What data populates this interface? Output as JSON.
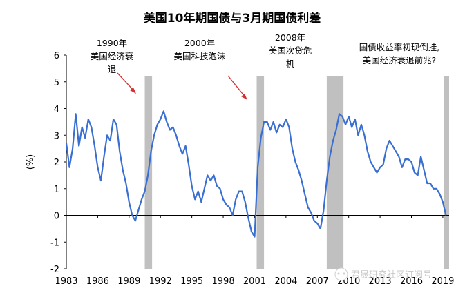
{
  "chart_data": {
    "type": "line",
    "title": "美国10年期国债与3月期国债利差",
    "ylabel": "(%)",
    "xlabel": "",
    "xlim": [
      1983,
      2019.6
    ],
    "ylim": [
      -2,
      6
    ],
    "y_ticks": [
      -2,
      -1,
      0,
      1,
      2,
      3,
      4,
      5,
      6
    ],
    "x_ticks": [
      1983,
      1986,
      1989,
      1992,
      1995,
      1998,
      2001,
      2004,
      2007,
      2010,
      2013,
      2016,
      2019
    ],
    "grid": false,
    "legend": "none",
    "line_color": "#3a6fd2",
    "shade_color": "#c0c0c0",
    "recessions": [
      {
        "start": 1990.5,
        "end": 1991.2
      },
      {
        "start": 2001.2,
        "end": 2001.9
      },
      {
        "start": 2007.9,
        "end": 2009.5
      },
      {
        "start": 2019.1,
        "end": 2019.6
      }
    ],
    "annotations": [
      {
        "lines": [
          "1990年",
          "美国经济衰",
          "退"
        ],
        "arrow": true
      },
      {
        "lines": [
          "2000年",
          "美国科技泡沫"
        ],
        "arrow": true
      },
      {
        "lines": [
          "2008年",
          "美国次贷危",
          "机"
        ],
        "arrow": false
      },
      {
        "lines": [
          "国债收益率初现倒挂,",
          "美国经济衰退前兆?"
        ],
        "arrow": false
      }
    ],
    "watermark": "君晟研究社区订阅号",
    "series": [
      {
        "x": [
          1983.0,
          1983.3,
          1983.6,
          1983.9,
          1984.2,
          1984.5,
          1984.8,
          1985.1,
          1985.4,
          1985.7,
          1986.0,
          1986.3,
          1986.6,
          1986.9,
          1987.2,
          1987.5,
          1987.8,
          1988.1,
          1988.4,
          1988.7,
          1989.0,
          1989.3,
          1989.6,
          1989.9,
          1990.2,
          1990.5,
          1990.8,
          1991.1,
          1991.4,
          1991.7,
          1992.0,
          1992.3,
          1992.6,
          1992.9,
          1993.2,
          1993.5,
          1993.8,
          1994.1,
          1994.4,
          1994.7,
          1995.0,
          1995.3,
          1995.6,
          1995.9,
          1996.2,
          1996.5,
          1996.8,
          1997.1,
          1997.4,
          1997.7,
          1998.0,
          1998.3,
          1998.6,
          1998.9,
          1999.2,
          1999.5,
          1999.8,
          2000.1,
          2000.4,
          2000.7,
          2001.0,
          2001.3,
          2001.6,
          2001.9,
          2002.2,
          2002.5,
          2002.8,
          2003.1,
          2003.4,
          2003.7,
          2004.0,
          2004.3,
          2004.6,
          2004.9,
          2005.2,
          2005.5,
          2005.8,
          2006.1,
          2006.4,
          2006.7,
          2007.0,
          2007.3,
          2007.6,
          2007.9,
          2008.2,
          2008.5,
          2008.8,
          2009.1,
          2009.4,
          2009.7,
          2010.0,
          2010.3,
          2010.6,
          2010.9,
          2011.2,
          2011.5,
          2011.8,
          2012.1,
          2012.4,
          2012.7,
          2013.0,
          2013.3,
          2013.6,
          2013.9,
          2014.2,
          2014.5,
          2014.8,
          2015.1,
          2015.4,
          2015.7,
          2016.0,
          2016.3,
          2016.6,
          2016.9,
          2017.2,
          2017.5,
          2017.8,
          2018.1,
          2018.4,
          2018.7,
          2019.0,
          2019.3
        ],
        "values": [
          2.7,
          1.8,
          2.5,
          3.8,
          2.6,
          3.3,
          2.9,
          3.6,
          3.3,
          2.6,
          1.8,
          1.3,
          2.2,
          3.0,
          2.8,
          3.6,
          3.4,
          2.4,
          1.7,
          1.2,
          0.5,
          0.0,
          -0.2,
          0.2,
          0.6,
          0.9,
          1.5,
          2.4,
          3.0,
          3.4,
          3.6,
          3.9,
          3.5,
          3.2,
          3.3,
          3.0,
          2.6,
          2.3,
          2.6,
          1.9,
          1.1,
          0.6,
          0.9,
          0.5,
          1.0,
          1.5,
          1.3,
          1.5,
          1.1,
          1.0,
          0.6,
          0.4,
          0.3,
          0.0,
          0.6,
          0.9,
          0.9,
          0.5,
          -0.1,
          -0.6,
          -0.8,
          1.8,
          2.9,
          3.5,
          3.5,
          3.2,
          3.5,
          3.1,
          3.4,
          3.3,
          3.6,
          3.3,
          2.5,
          2.0,
          1.7,
          1.3,
          0.8,
          0.3,
          0.1,
          -0.2,
          -0.3,
          -0.5,
          0.2,
          1.3,
          2.2,
          2.8,
          3.2,
          3.8,
          3.7,
          3.4,
          3.7,
          3.3,
          3.6,
          3.0,
          3.4,
          3.0,
          2.4,
          2.0,
          1.8,
          1.6,
          1.8,
          1.9,
          2.5,
          2.8,
          2.6,
          2.4,
          2.2,
          1.8,
          2.1,
          2.1,
          2.0,
          1.6,
          1.5,
          2.2,
          1.7,
          1.2,
          1.2,
          1.0,
          1.0,
          0.8,
          0.5,
          0.0
        ]
      }
    ]
  }
}
